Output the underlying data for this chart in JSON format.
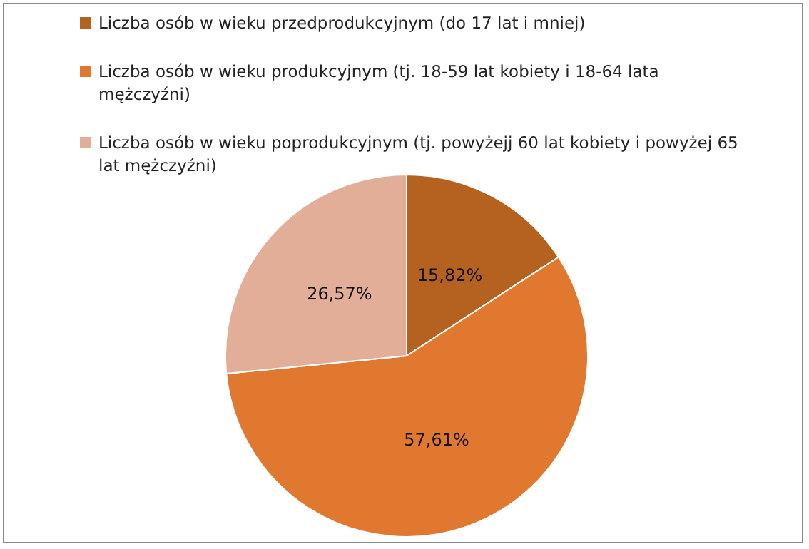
{
  "chart_data": {
    "type": "pie",
    "categories": [
      "Liczba osób w wieku przedprodukcyjnym (do 17 lat i mniej)",
      "Liczba osób w wieku produkcyjnym (tj.  18-59 lat kobiety i 18-64 lata mężczyźni)",
      "Liczba osób w wieku poprodukcyjnym (tj. powyżejj 60 lat kobiety i powyżej 65 lat mężczyźni)"
    ],
    "values": [
      15.82,
      57.61,
      26.57
    ],
    "value_labels": [
      "15,82%",
      "57,61%",
      "26,57%"
    ],
    "colors": [
      "#b5611f",
      "#e07830",
      "#e3ae98"
    ],
    "legend": "top"
  }
}
